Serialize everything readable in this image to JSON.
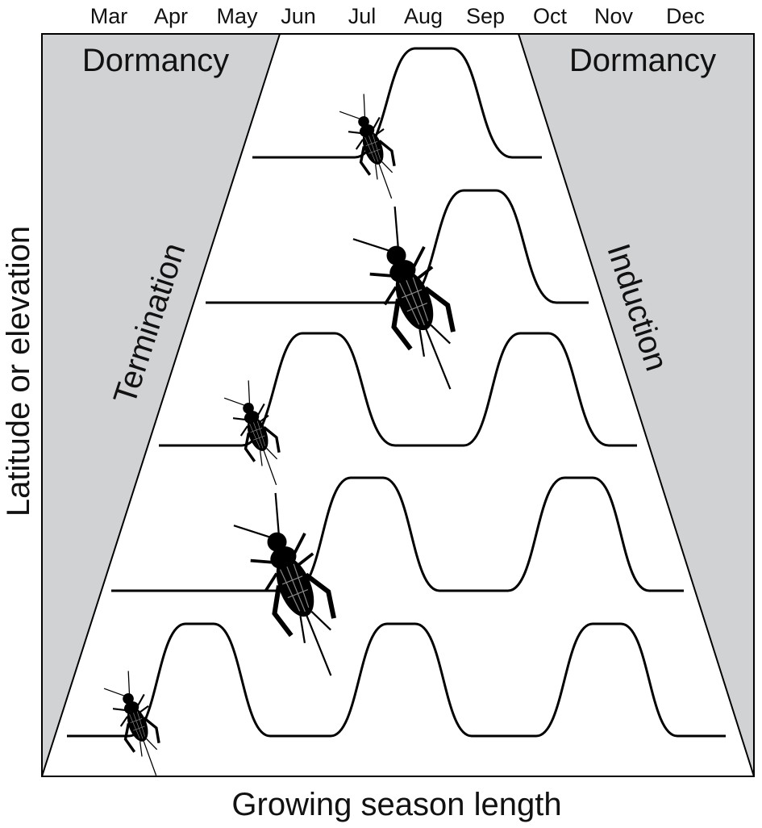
{
  "months": [
    "Mar",
    "Apr",
    "May",
    "Jun",
    "Jul",
    "Aug",
    "Sep",
    "Oct",
    "Nov",
    "Dec"
  ],
  "regions": {
    "left": "Dormancy",
    "right": "Dormancy"
  },
  "boundaries": {
    "left": "Termination",
    "right": "Induction"
  },
  "axes": {
    "y": "Latitude or elevation",
    "x": "Growing season length"
  }
}
